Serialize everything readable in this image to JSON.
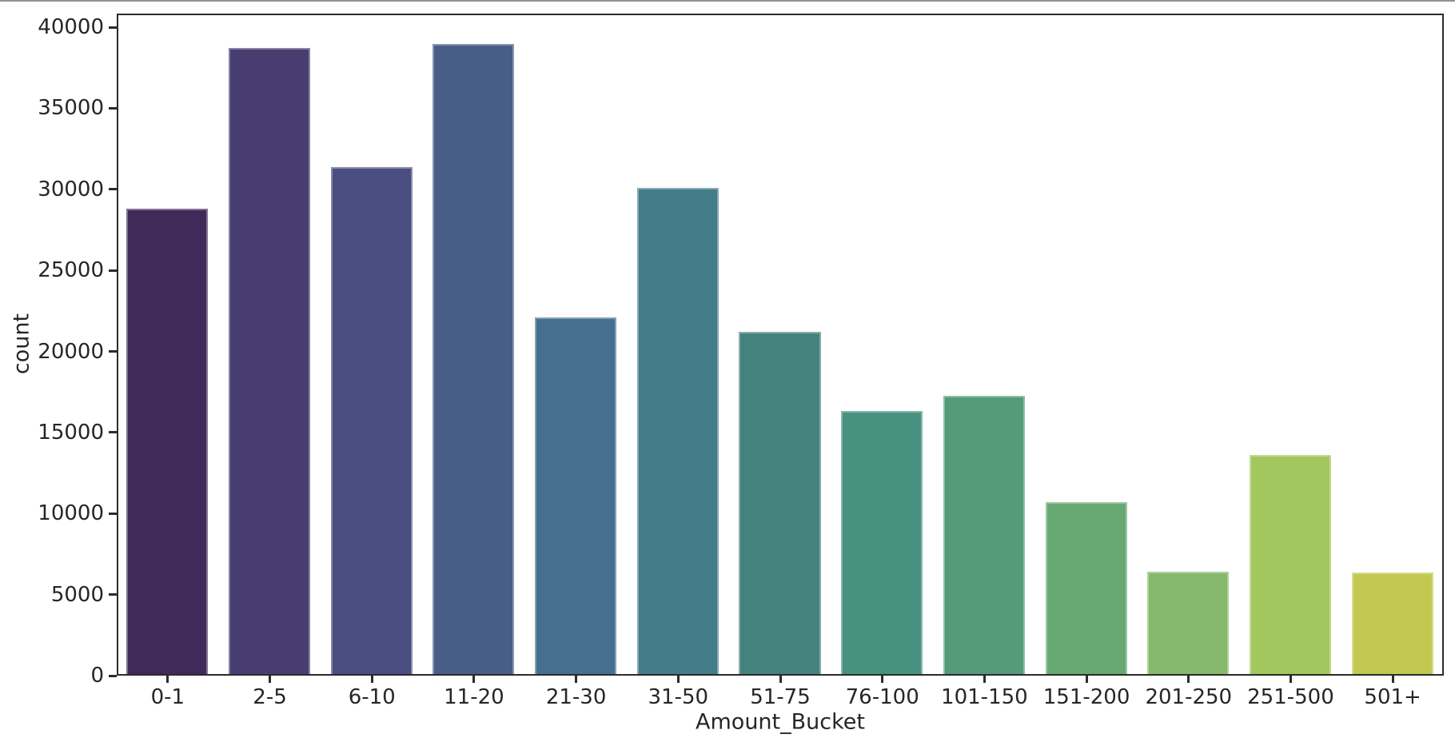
{
  "page": {
    "background": "#ffffff",
    "top_strip_color": "#929292"
  },
  "axes": {
    "spine_color": "#2b2b2b",
    "text_color": "#262626"
  },
  "chart_data": {
    "type": "bar",
    "title": "",
    "xlabel": "Amount_Bucket",
    "ylabel": "count",
    "categories": [
      "0-1",
      "2-5",
      "6-10",
      "11-20",
      "21-30",
      "31-50",
      "51-75",
      "76-100",
      "101-150",
      "151-200",
      "201-250",
      "251-500",
      "501+"
    ],
    "values": [
      28700,
      38600,
      31250,
      38850,
      22000,
      30000,
      21100,
      16230,
      17150,
      10600,
      6290,
      13530,
      6260
    ],
    "bar_colors": [
      "#3f2a5a",
      "#473d71",
      "#4a4e80",
      "#485e86",
      "#456f8c",
      "#447c8a",
      "#44827e",
      "#489180",
      "#549b7a",
      "#68a973",
      "#86b96b",
      "#a4c65e",
      "#c2c951"
    ],
    "y_ticks": [
      0,
      5000,
      10000,
      15000,
      20000,
      25000,
      30000,
      35000,
      40000
    ],
    "y_tick_labels": [
      "0",
      "5000",
      "10000",
      "15000",
      "20000",
      "25000",
      "30000",
      "35000",
      "40000"
    ],
    "ylim": [
      0,
      40840
    ],
    "grid": "off",
    "legend": "none",
    "bar_width_fraction": 0.8
  }
}
